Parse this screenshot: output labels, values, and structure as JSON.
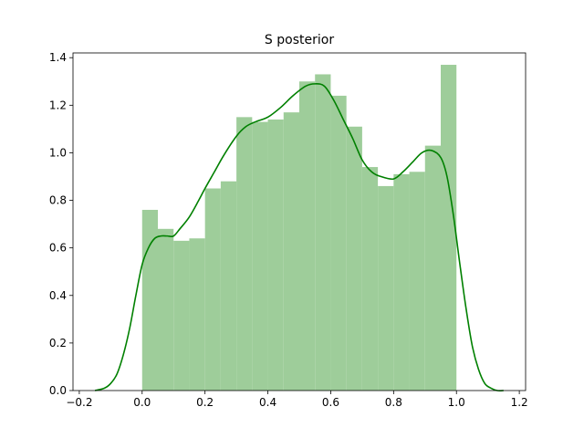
{
  "chart_data": {
    "type": "bar",
    "title": "S posterior",
    "xlabel": "",
    "ylabel": "",
    "xlim": [
      -0.22,
      1.22
    ],
    "ylim": [
      0,
      1.42
    ],
    "grid": false,
    "x_ticks": [
      -0.2,
      0.0,
      0.2,
      0.4,
      0.6,
      0.8,
      1.0,
      1.2
    ],
    "x_tick_labels": [
      "−0.2",
      "0.0",
      "0.2",
      "0.4",
      "0.6",
      "0.8",
      "1.0",
      "1.2"
    ],
    "y_ticks": [
      0.0,
      0.2,
      0.4,
      0.6,
      0.8,
      1.0,
      1.2,
      1.4
    ],
    "y_tick_labels": [
      "0.0",
      "0.2",
      "0.4",
      "0.6",
      "0.8",
      "1.0",
      "1.2",
      "1.4"
    ],
    "histogram": {
      "bin_edges": [
        0.0,
        0.05,
        0.1,
        0.15,
        0.2,
        0.25,
        0.3,
        0.35,
        0.4,
        0.45,
        0.5,
        0.55,
        0.6,
        0.65,
        0.7,
        0.75,
        0.8,
        0.85,
        0.9,
        0.95,
        1.0
      ],
      "values": [
        0.76,
        0.68,
        0.63,
        0.64,
        0.85,
        0.88,
        1.15,
        1.13,
        1.14,
        1.17,
        1.3,
        1.33,
        1.24,
        1.11,
        0.94,
        0.86,
        0.91,
        0.92,
        1.03,
        1.37
      ],
      "color": "#9ecd9a"
    },
    "density": {
      "x": [
        -0.15,
        -0.12,
        -0.1,
        -0.08,
        -0.06,
        -0.04,
        -0.02,
        0.0,
        0.02,
        0.04,
        0.06,
        0.08,
        0.1,
        0.12,
        0.15,
        0.18,
        0.2,
        0.23,
        0.26,
        0.3,
        0.33,
        0.36,
        0.4,
        0.44,
        0.48,
        0.52,
        0.55,
        0.58,
        0.61,
        0.64,
        0.67,
        0.7,
        0.73,
        0.76,
        0.8,
        0.83,
        0.86,
        0.89,
        0.92,
        0.95,
        0.97,
        0.99,
        1.01,
        1.03,
        1.05,
        1.07,
        1.09,
        1.11,
        1.13,
        1.15
      ],
      "y": [
        0.0,
        0.01,
        0.03,
        0.07,
        0.15,
        0.26,
        0.4,
        0.53,
        0.6,
        0.64,
        0.65,
        0.65,
        0.65,
        0.68,
        0.73,
        0.8,
        0.85,
        0.92,
        0.99,
        1.07,
        1.11,
        1.13,
        1.15,
        1.19,
        1.24,
        1.28,
        1.29,
        1.28,
        1.22,
        1.14,
        1.06,
        0.97,
        0.92,
        0.9,
        0.89,
        0.92,
        0.96,
        1.0,
        1.01,
        0.98,
        0.9,
        0.74,
        0.54,
        0.35,
        0.19,
        0.09,
        0.03,
        0.01,
        0.0,
        0.0
      ],
      "color": "#008000"
    }
  }
}
